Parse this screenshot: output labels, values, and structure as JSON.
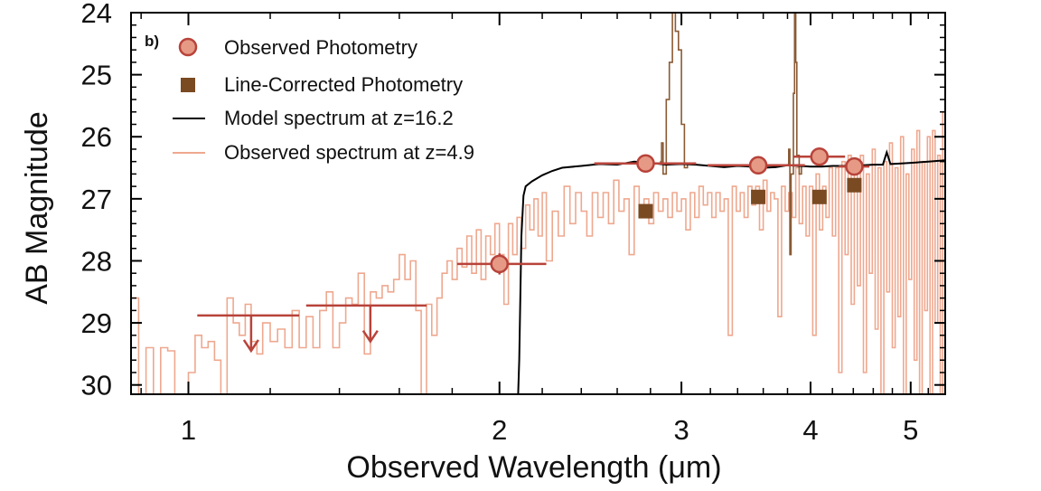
{
  "chart_data": {
    "type": "line",
    "panel_label": "b)",
    "xlabel": "Observed Wavelength (μm)",
    "ylabel": "AB Magnitude",
    "xscale": "log",
    "xlim": [
      0.88,
      5.4
    ],
    "ylim": [
      30.15,
      24.0
    ],
    "x_ticks": [
      1,
      2,
      3,
      4,
      5
    ],
    "x_tick_labels": [
      "1",
      "2",
      "3",
      "4",
      "5"
    ],
    "y_ticks": [
      24,
      25,
      26,
      27,
      28,
      29,
      30
    ],
    "y_tick_labels": [
      "24",
      "25",
      "26",
      "27",
      "28",
      "29",
      "30"
    ],
    "legend": {
      "placement": "top-left",
      "entries": [
        {
          "label": "Observed Photometry",
          "marker": "circle",
          "color": "#e69a86",
          "edge": "#b8433a"
        },
        {
          "label": "Line-Corrected Photometry",
          "marker": "square",
          "color": "#7a4a22"
        },
        {
          "label": "Model spectrum at z=16.2",
          "marker": "line",
          "color": "#000000"
        },
        {
          "label": "Observed spectrum at z=4.9",
          "marker": "line",
          "color": "#eea88f"
        }
      ]
    },
    "series": [
      {
        "name": "Observed Photometry",
        "style": "points",
        "points": [
          {
            "x": 2.0,
            "y": 28.05,
            "xerr": [
              1.82,
              2.22
            ],
            "yerr": [
              27.88,
              28.22
            ]
          },
          {
            "x": 2.77,
            "y": 26.43,
            "xerr": [
              2.47,
              3.1
            ],
            "yerr": [
              26.38,
              26.48
            ]
          },
          {
            "x": 3.56,
            "y": 26.46,
            "xerr": [
              3.18,
              3.95
            ],
            "yerr": [
              26.41,
              26.51
            ]
          },
          {
            "x": 4.08,
            "y": 26.32,
            "xerr": [
              3.85,
              4.32
            ],
            "yerr": [
              26.22,
              26.42
            ]
          },
          {
            "x": 4.41,
            "y": 26.48,
            "xerr": [
              4.26,
              4.56
            ],
            "yerr": [
              26.38,
              26.58
            ]
          }
        ],
        "upper_limits": [
          {
            "x": 1.15,
            "y": 28.88,
            "xerr": [
              1.02,
              1.28
            ],
            "arrow_to": 29.45
          },
          {
            "x": 1.5,
            "y": 28.72,
            "xerr": [
              1.3,
              1.7
            ],
            "arrow_to": 29.3
          }
        ]
      },
      {
        "name": "Line-Corrected Photometry",
        "style": "points",
        "points": [
          {
            "x": 2.77,
            "y": 27.2
          },
          {
            "x": 3.56,
            "y": 26.97
          },
          {
            "x": 4.08,
            "y": 26.97
          },
          {
            "x": 4.41,
            "y": 26.78
          }
        ]
      },
      {
        "name": "Model spectrum at z=16.2",
        "style": "line",
        "points": [
          [
            2.085,
            30.15
          ],
          [
            2.09,
            29.6
          ],
          [
            2.095,
            28.6
          ],
          [
            2.1,
            27.6
          ],
          [
            2.11,
            26.95
          ],
          [
            2.12,
            26.8
          ],
          [
            2.15,
            26.72
          ],
          [
            2.2,
            26.62
          ],
          [
            2.25,
            26.55
          ],
          [
            2.3,
            26.5
          ],
          [
            2.4,
            26.47
          ],
          [
            2.5,
            26.44
          ],
          [
            2.6,
            26.45
          ],
          [
            2.7,
            26.4
          ],
          [
            2.8,
            26.42
          ],
          [
            2.9,
            26.45
          ],
          [
            3.0,
            26.44
          ],
          [
            3.1,
            26.45
          ],
          [
            3.2,
            26.47
          ],
          [
            3.3,
            26.49
          ],
          [
            3.4,
            26.47
          ],
          [
            3.5,
            26.48
          ],
          [
            3.6,
            26.5
          ],
          [
            3.7,
            26.49
          ],
          [
            3.8,
            26.46
          ],
          [
            3.9,
            26.47
          ],
          [
            4.0,
            26.48
          ],
          [
            4.1,
            26.48
          ],
          [
            4.2,
            26.47
          ],
          [
            4.3,
            26.47
          ],
          [
            4.4,
            26.47
          ],
          [
            4.5,
            26.46
          ],
          [
            4.6,
            26.45
          ],
          [
            4.7,
            26.45
          ],
          [
            4.74,
            26.25
          ],
          [
            4.78,
            26.44
          ],
          [
            4.9,
            26.43
          ],
          [
            5.0,
            26.42
          ],
          [
            5.1,
            26.41
          ],
          [
            5.2,
            26.4
          ],
          [
            5.3,
            26.39
          ],
          [
            5.4,
            26.38
          ]
        ]
      },
      {
        "name": "Observed spectrum at z=4.9",
        "style": "step",
        "points": [
          [
            0.88,
            28.6
          ],
          [
            0.895,
            30.15
          ],
          [
            0.91,
            29.4
          ],
          [
            0.925,
            30.15
          ],
          [
            0.94,
            29.4
          ],
          [
            0.955,
            29.45
          ],
          [
            0.97,
            30.15
          ],
          [
            0.985,
            30.15
          ],
          [
            1.0,
            29.8
          ],
          [
            1.015,
            29.2
          ],
          [
            1.03,
            29.4
          ],
          [
            1.045,
            29.3
          ],
          [
            1.06,
            29.6
          ],
          [
            1.075,
            30.15
          ],
          [
            1.09,
            28.6
          ],
          [
            1.105,
            29.0
          ],
          [
            1.12,
            29.2
          ],
          [
            1.135,
            28.7
          ],
          [
            1.15,
            29.3
          ],
          [
            1.165,
            29.5
          ],
          [
            1.18,
            29.0
          ],
          [
            1.2,
            29.3
          ],
          [
            1.22,
            29.1
          ],
          [
            1.24,
            29.4
          ],
          [
            1.26,
            28.8
          ],
          [
            1.28,
            29.4
          ],
          [
            1.3,
            28.9
          ],
          [
            1.32,
            29.4
          ],
          [
            1.34,
            28.8
          ],
          [
            1.36,
            28.5
          ],
          [
            1.38,
            29.4
          ],
          [
            1.4,
            29.0
          ],
          [
            1.42,
            28.6
          ],
          [
            1.44,
            28.7
          ],
          [
            1.46,
            28.2
          ],
          [
            1.48,
            29.5
          ],
          [
            1.5,
            28.5
          ],
          [
            1.52,
            28.6
          ],
          [
            1.54,
            28.4
          ],
          [
            1.56,
            28.5
          ],
          [
            1.58,
            28.3
          ],
          [
            1.6,
            27.9
          ],
          [
            1.62,
            28.3
          ],
          [
            1.64,
            28.0
          ],
          [
            1.66,
            28.8
          ],
          [
            1.68,
            30.15
          ],
          [
            1.7,
            28.7
          ],
          [
            1.72,
            29.2
          ],
          [
            1.74,
            28.6
          ],
          [
            1.76,
            28.2
          ],
          [
            1.78,
            28.0
          ],
          [
            1.8,
            28.3
          ],
          [
            1.82,
            27.8
          ],
          [
            1.84,
            28.1
          ],
          [
            1.86,
            27.6
          ],
          [
            1.88,
            28.2
          ],
          [
            1.9,
            27.5
          ],
          [
            1.92,
            28.3
          ],
          [
            1.94,
            27.6
          ],
          [
            1.96,
            27.9
          ],
          [
            1.98,
            27.4
          ],
          [
            2.0,
            27.9
          ],
          [
            2.02,
            28.7
          ],
          [
            2.04,
            27.4
          ],
          [
            2.06,
            27.9
          ],
          [
            2.08,
            27.3
          ],
          [
            2.1,
            27.8
          ],
          [
            2.12,
            27.1
          ],
          [
            2.14,
            27.5
          ],
          [
            2.16,
            27.0
          ],
          [
            2.18,
            27.6
          ],
          [
            2.2,
            26.9
          ],
          [
            2.22,
            28.0
          ],
          [
            2.25,
            27.2
          ],
          [
            2.28,
            27.6
          ],
          [
            2.31,
            26.8
          ],
          [
            2.34,
            27.4
          ],
          [
            2.37,
            26.9
          ],
          [
            2.4,
            27.2
          ],
          [
            2.43,
            27.6
          ],
          [
            2.46,
            26.9
          ],
          [
            2.49,
            27.3
          ],
          [
            2.52,
            26.9
          ],
          [
            2.55,
            27.4
          ],
          [
            2.58,
            26.7
          ],
          [
            2.61,
            27.2
          ],
          [
            2.64,
            27.0
          ],
          [
            2.67,
            27.9
          ],
          [
            2.7,
            26.8
          ],
          [
            2.73,
            27.3
          ],
          [
            2.76,
            27.0
          ],
          [
            2.79,
            27.4
          ],
          [
            2.82,
            26.9
          ],
          [
            2.85,
            27.2
          ],
          [
            2.88,
            27.0
          ],
          [
            2.91,
            27.3
          ],
          [
            2.94,
            26.9
          ],
          [
            2.97,
            27.2
          ],
          [
            3.0,
            27.0
          ],
          [
            3.03,
            27.5
          ],
          [
            3.06,
            26.9
          ],
          [
            3.09,
            27.3
          ],
          [
            3.12,
            26.8
          ],
          [
            3.15,
            27.1
          ],
          [
            3.18,
            26.9
          ],
          [
            3.21,
            27.3
          ],
          [
            3.24,
            26.9
          ],
          [
            3.27,
            27.2
          ],
          [
            3.3,
            27.0
          ],
          [
            3.33,
            29.2
          ],
          [
            3.36,
            26.8
          ],
          [
            3.39,
            27.2
          ],
          [
            3.42,
            26.9
          ],
          [
            3.45,
            27.3
          ],
          [
            3.48,
            26.8
          ],
          [
            3.51,
            27.1
          ],
          [
            3.54,
            26.8
          ],
          [
            3.57,
            27.5
          ],
          [
            3.6,
            26.7
          ],
          [
            3.63,
            27.2
          ],
          [
            3.66,
            26.9
          ],
          [
            3.69,
            27.0
          ],
          [
            3.72,
            28.9
          ],
          [
            3.75,
            26.8
          ],
          [
            3.78,
            27.2
          ],
          [
            3.81,
            26.9
          ],
          [
            3.84,
            27.3
          ],
          [
            3.87,
            26.5
          ],
          [
            3.9,
            27.4
          ],
          [
            3.93,
            26.8
          ],
          [
            3.96,
            27.6
          ],
          [
            3.99,
            26.8
          ],
          [
            4.02,
            29.2
          ],
          [
            4.05,
            26.6
          ],
          [
            4.08,
            27.5
          ],
          [
            4.11,
            26.8
          ],
          [
            4.14,
            27.3
          ],
          [
            4.17,
            26.5
          ],
          [
            4.2,
            27.6
          ],
          [
            4.23,
            26.5
          ],
          [
            4.26,
            29.8
          ],
          [
            4.29,
            26.4
          ],
          [
            4.32,
            27.9
          ],
          [
            4.35,
            26.3
          ],
          [
            4.38,
            28.7
          ],
          [
            4.41,
            26.5
          ],
          [
            4.44,
            28.4
          ],
          [
            4.47,
            26.3
          ],
          [
            4.5,
            29.8
          ],
          [
            4.53,
            26.6
          ],
          [
            4.56,
            28.2
          ],
          [
            4.59,
            26.2
          ],
          [
            4.62,
            29.1
          ],
          [
            4.65,
            26.5
          ],
          [
            4.68,
            30.15
          ],
          [
            4.71,
            26.4
          ],
          [
            4.74,
            28.5
          ],
          [
            4.77,
            26.1
          ],
          [
            4.8,
            29.4
          ],
          [
            4.83,
            26.5
          ],
          [
            4.86,
            28.9
          ],
          [
            4.89,
            26.0
          ],
          [
            4.92,
            30.15
          ],
          [
            4.95,
            26.6
          ],
          [
            4.98,
            28.3
          ],
          [
            5.01,
            26.2
          ],
          [
            5.04,
            29.6
          ],
          [
            5.07,
            25.9
          ],
          [
            5.1,
            30.15
          ],
          [
            5.13,
            26.4
          ],
          [
            5.16,
            28.8
          ],
          [
            5.19,
            26.0
          ],
          [
            5.22,
            30.15
          ],
          [
            5.25,
            25.9
          ],
          [
            5.28,
            29.0
          ],
          [
            5.31,
            26.3
          ],
          [
            5.34,
            30.15
          ],
          [
            5.37,
            25.6
          ],
          [
            5.4,
            28.0
          ]
        ]
      },
      {
        "name": "Emission lines",
        "style": "line",
        "points": [
          [
            2.86,
            26.4
          ],
          [
            2.87,
            26.1
          ],
          [
            2.88,
            26.6
          ],
          [
            2.9,
            25.4
          ],
          [
            2.92,
            24.8
          ],
          [
            2.94,
            24.0
          ],
          [
            2.96,
            24.3
          ],
          [
            2.98,
            24.6
          ],
          [
            3.0,
            25.8
          ],
          [
            3.02,
            26.5
          ],
          [
            3.04,
            26.45
          ]
        ]
      },
      {
        "name": "Emission lines 2",
        "style": "line",
        "points": [
          [
            3.8,
            26.45
          ],
          [
            3.81,
            26.2
          ],
          [
            3.82,
            27.9
          ],
          [
            3.83,
            26.6
          ],
          [
            3.85,
            25.3
          ],
          [
            3.86,
            24.0
          ],
          [
            3.87,
            24.8
          ],
          [
            3.88,
            26.3
          ],
          [
            3.9,
            26.6
          ],
          [
            3.92,
            26.45
          ]
        ]
      }
    ]
  }
}
